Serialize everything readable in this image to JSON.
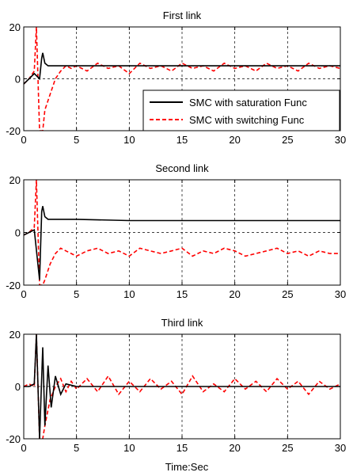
{
  "figure": {
    "xlabel": "Time:Sec"
  },
  "chart_data": [
    {
      "type": "line",
      "title": "First link",
      "xlim": [
        0,
        30
      ],
      "ylim": [
        -20,
        20
      ],
      "xticks": [
        0,
        5,
        10,
        15,
        20,
        25,
        30
      ],
      "xtick_labels": [
        "0",
        "5",
        "10",
        "15",
        "20",
        "25",
        "30"
      ],
      "yticks": [
        -20,
        0,
        20
      ],
      "ytick_labels": [
        "-20",
        "0",
        "20"
      ],
      "grid": true,
      "legend": {
        "placement": "lower-right",
        "entries": [
          "SMC with saturation Func",
          "SMC with switching Func"
        ]
      },
      "series": [
        {
          "name": "SMC with saturation Func",
          "color": "#000000",
          "style": "solid",
          "x": [
            0,
            0.5,
            1.0,
            1.5,
            1.7,
            1.8,
            2.0,
            2.3,
            3,
            5,
            10,
            15,
            20,
            25,
            30
          ],
          "y": [
            -2,
            0,
            2,
            0,
            8,
            10,
            6,
            5,
            5,
            5,
            5,
            5,
            5,
            5,
            5
          ]
        },
        {
          "name": "SMC with switching Func",
          "color": "#ff0000",
          "style": "dashed",
          "x": [
            0,
            0.5,
            1.0,
            1.2,
            1.5,
            1.8,
            2.0,
            2.5,
            3,
            3.5,
            4,
            4.5,
            5,
            6,
            7,
            8,
            9,
            10,
            11,
            12,
            13,
            14,
            15,
            16,
            17,
            18,
            19,
            20,
            21,
            22,
            23,
            24,
            25,
            26,
            27,
            28,
            29,
            30
          ],
          "y": [
            -2,
            0,
            3,
            20,
            -20,
            -20,
            -12,
            -6,
            0,
            3,
            5,
            4,
            5,
            3,
            6,
            4,
            5,
            2,
            6,
            4,
            5,
            3,
            6,
            4,
            5,
            3,
            6,
            4,
            5,
            3,
            6,
            4,
            5,
            3,
            6,
            4,
            5,
            4
          ]
        }
      ]
    },
    {
      "type": "line",
      "title": "Second link",
      "xlim": [
        0,
        30
      ],
      "ylim": [
        -20,
        20
      ],
      "xticks": [
        0,
        5,
        10,
        15,
        20,
        25,
        30
      ],
      "xtick_labels": [
        "0",
        "5",
        "10",
        "15",
        "20",
        "25",
        "30"
      ],
      "yticks": [
        -20,
        0,
        20
      ],
      "ytick_labels": [
        "-20",
        "0",
        "20"
      ],
      "grid": true,
      "series": [
        {
          "name": "SMC with saturation Func",
          "color": "#000000",
          "style": "solid",
          "x": [
            0,
            0.5,
            1.0,
            1.5,
            1.7,
            1.8,
            2.0,
            2.3,
            3,
            5,
            10,
            15,
            20,
            25,
            30
          ],
          "y": [
            -1,
            0,
            1,
            -18,
            8,
            10,
            6,
            5,
            5,
            5,
            4.5,
            4.5,
            4.5,
            4.5,
            4.5
          ]
        },
        {
          "name": "SMC with switching Func",
          "color": "#ff0000",
          "style": "dashed",
          "x": [
            0,
            0.5,
            1.0,
            1.2,
            1.5,
            1.8,
            2.0,
            2.5,
            3,
            3.5,
            4,
            4.5,
            5,
            6,
            7,
            8,
            9,
            10,
            11,
            12,
            13,
            14,
            15,
            16,
            17,
            18,
            19,
            20,
            21,
            22,
            23,
            24,
            25,
            26,
            27,
            28,
            29,
            30
          ],
          "y": [
            -1,
            0,
            2,
            20,
            -20,
            -20,
            -18,
            -12,
            -8,
            -6,
            -7,
            -8,
            -9,
            -7,
            -6,
            -8,
            -7,
            -9,
            -6,
            -7,
            -8,
            -7,
            -6,
            -9,
            -7,
            -8,
            -6,
            -7,
            -9,
            -8,
            -7,
            -6,
            -8,
            -7,
            -9,
            -7,
            -8,
            -8
          ]
        }
      ]
    },
    {
      "type": "line",
      "title": "Third link",
      "xlim": [
        0,
        30
      ],
      "ylim": [
        -20,
        20
      ],
      "xticks": [
        0,
        5,
        10,
        15,
        20,
        25,
        30
      ],
      "xtick_labels": [
        "0",
        "5",
        "10",
        "15",
        "20",
        "25",
        "30"
      ],
      "yticks": [
        -20,
        0,
        20
      ],
      "ytick_labels": [
        "-20",
        "0",
        "20"
      ],
      "grid": true,
      "series": [
        {
          "name": "SMC with saturation Func",
          "color": "#000000",
          "style": "solid",
          "x": [
            0,
            0.5,
            1.0,
            1.2,
            1.5,
            1.8,
            2.0,
            2.3,
            2.6,
            3,
            3.5,
            4,
            5,
            10,
            15,
            20,
            25,
            30
          ],
          "y": [
            0,
            0,
            1,
            20,
            -20,
            15,
            -15,
            8,
            -8,
            4,
            -3,
            1,
            0,
            0,
            0,
            0,
            0,
            0
          ]
        },
        {
          "name": "SMC with switching Func",
          "color": "#ff0000",
          "style": "dashed",
          "x": [
            0,
            0.5,
            1.0,
            1.2,
            1.5,
            1.8,
            2.0,
            2.5,
            3,
            3.5,
            4,
            4.5,
            5,
            6,
            7,
            8,
            9,
            10,
            11,
            12,
            13,
            14,
            15,
            16,
            17,
            18,
            19,
            20,
            21,
            22,
            23,
            24,
            25,
            26,
            27,
            28,
            29,
            30
          ],
          "y": [
            0,
            1,
            0,
            20,
            -20,
            -20,
            -15,
            -5,
            0,
            3,
            -2,
            2,
            -1,
            3,
            -2,
            4,
            -3,
            2,
            -2,
            3,
            -1,
            2,
            -3,
            4,
            -2,
            1,
            -2,
            3,
            -1,
            2,
            -2,
            3,
            -1,
            2,
            -3,
            2,
            -1,
            1
          ]
        }
      ]
    }
  ]
}
